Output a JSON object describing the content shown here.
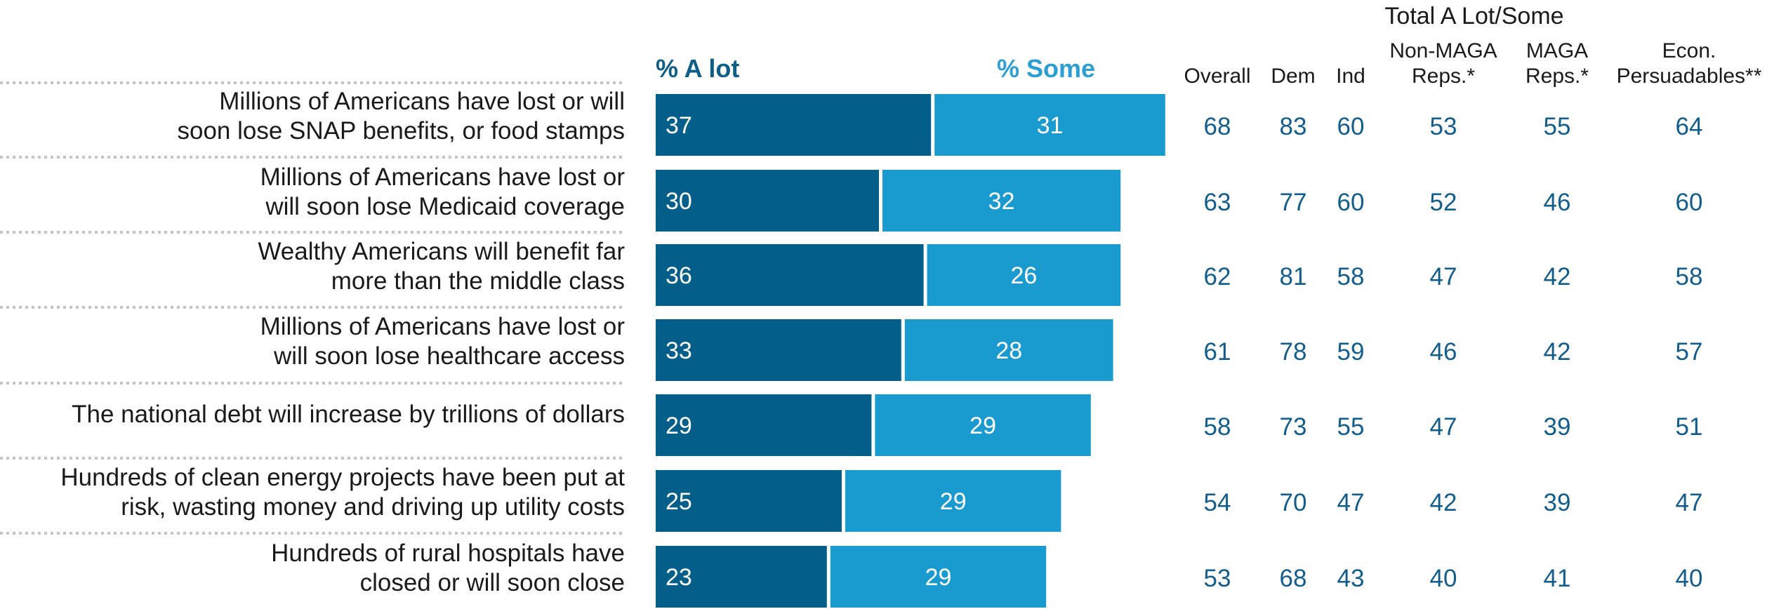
{
  "chart_data": {
    "type": "bar",
    "orientation": "horizontal",
    "stacked": true,
    "legend": [
      "% A lot",
      "% Some"
    ],
    "categories": [
      "Millions of Americans have lost or will soon lose SNAP benefits, or food stamps",
      "Millions of Americans have lost or will soon lose Medicaid coverage",
      "Wealthy Americans will benefit far more than the middle class",
      "Millions of Americans have lost or will soon lose healthcare access",
      "The national debt will increase by trillions of dollars",
      "Hundreds of clean energy projects have been put at risk, wasting money and driving up utility costs",
      "Hundreds of rural hospitals have closed or will soon close"
    ],
    "category_lines": [
      [
        "Millions of Americans have lost or will",
        "soon lose SNAP benefits, or food stamps"
      ],
      [
        "Millions of Americans have lost or",
        "will soon lose Medicaid coverage"
      ],
      [
        "Wealthy Americans will benefit far",
        "more than the middle class"
      ],
      [
        "Millions of Americans have lost or",
        "will soon lose healthcare access"
      ],
      [
        "The national debt will increase by trillions of dollars"
      ],
      [
        "Hundreds of clean energy projects have been put at",
        "risk, wasting money and driving up utility costs"
      ],
      [
        "Hundreds of rural hospitals have",
        "closed or will soon close"
      ]
    ],
    "series": [
      {
        "name": "% A lot",
        "values": [
          37,
          30,
          36,
          33,
          29,
          25,
          23
        ]
      },
      {
        "name": "% Some",
        "values": [
          31,
          32,
          26,
          28,
          29,
          29,
          29
        ]
      }
    ],
    "table": {
      "group_header": "Total A Lot/Some",
      "columns": [
        {
          "label_lines": [
            "Overall"
          ]
        },
        {
          "label_lines": [
            "Dem"
          ]
        },
        {
          "label_lines": [
            "Ind"
          ]
        },
        {
          "label_lines": [
            "Non-MAGA",
            "Reps.*"
          ]
        },
        {
          "label_lines": [
            "MAGA",
            "Reps.*"
          ]
        },
        {
          "label_lines": [
            "Econ.",
            "Persuadables**"
          ]
        }
      ],
      "rows": [
        [
          68,
          83,
          60,
          53,
          55,
          64
        ],
        [
          63,
          77,
          60,
          52,
          46,
          60
        ],
        [
          62,
          81,
          58,
          47,
          42,
          58
        ],
        [
          61,
          78,
          59,
          46,
          42,
          57
        ],
        [
          58,
          73,
          55,
          47,
          39,
          51
        ],
        [
          54,
          70,
          47,
          42,
          39,
          47
        ],
        [
          53,
          68,
          43,
          40,
          41,
          40
        ]
      ]
    },
    "colors": {
      "a_lot": "#035e89",
      "some": "#1a9bd0",
      "a_lot_legend": "#0f5e8a",
      "some_legend": "#2b9fd4",
      "table_values": "#125d8c",
      "label_text": "#1a1a1a",
      "separator": "#c4c4c4"
    }
  }
}
